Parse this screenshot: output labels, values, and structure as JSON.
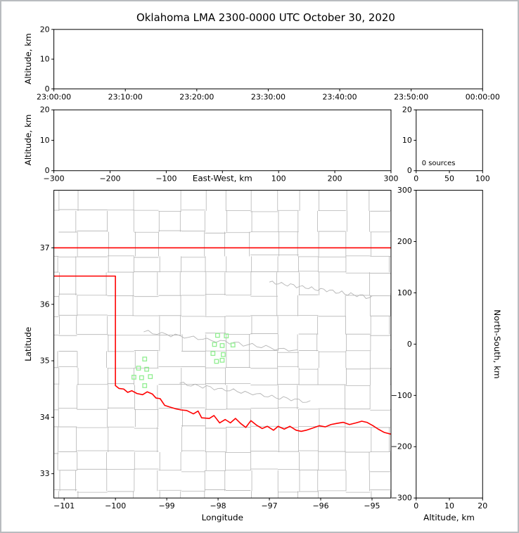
{
  "title": "Oklahoma LMA 2300-0000 UTC October 30, 2020",
  "colors": {
    "state_boundary": "#ff0000",
    "county_lines": "#b4b4b4",
    "station_marker": "#90ee90",
    "axis": "#000000"
  },
  "chart_data": [
    {
      "id": "time_height",
      "type": "scatter",
      "ylabel": "Altitude, km",
      "ylim": [
        0,
        20
      ],
      "yticks": [
        0,
        10,
        20
      ],
      "x_tick_labels": [
        "23:00:00",
        "23:10:00",
        "23:20:00",
        "23:30:00",
        "23:40:00",
        "23:50:00",
        "00:00:00"
      ],
      "points": []
    },
    {
      "id": "ew_height",
      "type": "scatter",
      "xlabel": "East-West, km",
      "xlim": [
        -300,
        300
      ],
      "xticks": [
        -300,
        -200,
        -100,
        0,
        100,
        200,
        300
      ],
      "ylabel": "Altitude, km",
      "ylim": [
        0,
        20
      ],
      "yticks": [
        0,
        10,
        20
      ],
      "points": []
    },
    {
      "id": "source_histogram",
      "type": "bar",
      "xlim": [
        0,
        100
      ],
      "xticks": [
        0,
        50,
        100
      ],
      "ylim": [
        0,
        20
      ],
      "yticks": [
        0,
        10,
        20
      ],
      "annotation": "0 sources",
      "values": []
    },
    {
      "id": "plan_view",
      "type": "scatter",
      "xlabel": "Longitude",
      "ylabel": "Latitude",
      "xlim": [
        -101.2,
        -94.63
      ],
      "ylim": [
        32.57,
        38.02
      ],
      "xticks": [
        -101,
        -100,
        -99,
        -98,
        -97,
        -96,
        -95
      ],
      "yticks": [
        33,
        34,
        35,
        36,
        37
      ],
      "series": [
        {
          "name": "lma_stations",
          "marker": "square",
          "color": "#90ee90",
          "points": [
            [
              -98.01,
              35.45
            ],
            [
              -97.84,
              35.44
            ],
            [
              -98.07,
              35.29
            ],
            [
              -97.92,
              35.27
            ],
            [
              -97.71,
              35.28
            ],
            [
              -98.1,
              35.13
            ],
            [
              -97.9,
              35.11
            ],
            [
              -98.03,
              34.99
            ],
            [
              -97.92,
              35.01
            ],
            [
              -99.43,
              35.03
            ],
            [
              -99.55,
              34.87
            ],
            [
              -99.39,
              34.85
            ],
            [
              -99.64,
              34.71
            ],
            [
              -99.49,
              34.7
            ],
            [
              -99.32,
              34.72
            ],
            [
              -99.43,
              34.56
            ]
          ]
        }
      ],
      "state_boundary": {
        "color": "#ff0000",
        "segments": [
          [
            [
              -101.2,
              37.0
            ],
            [
              -94.63,
              37.0
            ]
          ],
          [
            [
              -101.2,
              36.5
            ],
            [
              -100.0,
              36.5
            ],
            [
              -100.0,
              34.56
            ],
            [
              -99.93,
              34.51
            ],
            [
              -99.84,
              34.5
            ],
            [
              -99.76,
              34.44
            ],
            [
              -99.68,
              34.47
            ],
            [
              -99.58,
              34.42
            ],
            [
              -99.47,
              34.4
            ],
            [
              -99.38,
              34.45
            ],
            [
              -99.28,
              34.41
            ],
            [
              -99.21,
              34.34
            ],
            [
              -99.13,
              34.33
            ],
            [
              -99.04,
              34.21
            ],
            [
              -98.94,
              34.18
            ],
            [
              -98.83,
              34.15
            ],
            [
              -98.72,
              34.13
            ],
            [
              -98.61,
              34.12
            ],
            [
              -98.48,
              34.06
            ],
            [
              -98.39,
              34.11
            ],
            [
              -98.32,
              33.99
            ],
            [
              -98.17,
              33.98
            ],
            [
              -98.08,
              34.03
            ],
            [
              -97.97,
              33.9
            ],
            [
              -97.86,
              33.96
            ],
            [
              -97.76,
              33.9
            ],
            [
              -97.66,
              33.98
            ],
            [
              -97.56,
              33.89
            ],
            [
              -97.46,
              33.82
            ],
            [
              -97.36,
              33.94
            ],
            [
              -97.25,
              33.86
            ],
            [
              -97.14,
              33.8
            ],
            [
              -97.04,
              33.84
            ],
            [
              -96.92,
              33.77
            ],
            [
              -96.83,
              33.84
            ],
            [
              -96.71,
              33.79
            ],
            [
              -96.6,
              33.84
            ],
            [
              -96.48,
              33.77
            ],
            [
              -96.38,
              33.75
            ],
            [
              -96.28,
              33.77
            ],
            [
              -96.15,
              33.81
            ],
            [
              -96.03,
              33.85
            ],
            [
              -95.91,
              33.83
            ],
            [
              -95.8,
              33.87
            ],
            [
              -95.69,
              33.89
            ],
            [
              -95.56,
              33.91
            ],
            [
              -95.44,
              33.87
            ],
            [
              -95.31,
              33.9
            ],
            [
              -95.2,
              33.93
            ],
            [
              -95.1,
              33.91
            ],
            [
              -94.98,
              33.85
            ],
            [
              -94.88,
              33.79
            ],
            [
              -94.76,
              33.73
            ],
            [
              -94.63,
              33.7
            ]
          ]
        ]
      }
    },
    {
      "id": "ns_height",
      "type": "scatter",
      "xlabel": "Altitude, km",
      "ylabel": "North-South, km",
      "xlim": [
        0,
        20
      ],
      "xticks": [
        0,
        10,
        20
      ],
      "ylim": [
        -300,
        300
      ],
      "yticks": [
        -300,
        -200,
        -100,
        0,
        100,
        200,
        300
      ],
      "points": []
    }
  ]
}
